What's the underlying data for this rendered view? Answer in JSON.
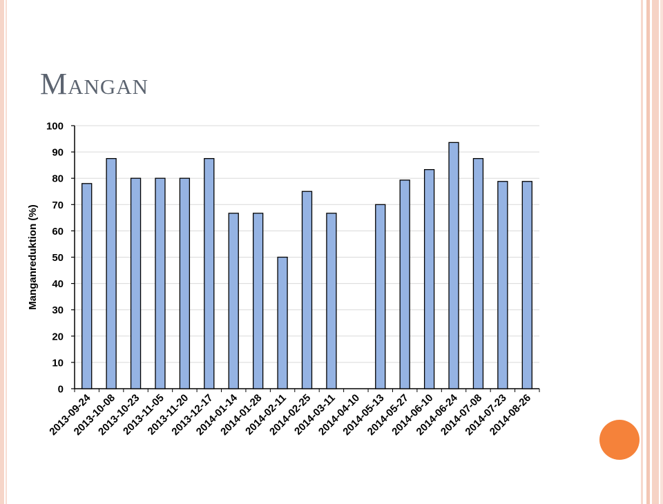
{
  "slide": {
    "title": "Mangan",
    "accent_color": "#f5823a",
    "border_color": "#f3c7b5"
  },
  "chart_data": {
    "type": "bar",
    "title": "",
    "xlabel": "",
    "ylabel": "Manganreduktion (%)",
    "ylim": [
      0,
      100
    ],
    "yticks": [
      0,
      10,
      20,
      30,
      40,
      50,
      60,
      70,
      80,
      90,
      100
    ],
    "grid": true,
    "bar_color": "#95b3e3",
    "categories": [
      "2013-09-24",
      "2013-10-08",
      "2013-10-23",
      "2013-11-05",
      "2013-11-20",
      "2013-12-17",
      "2014-01-14",
      "2014-01-28",
      "2014-02-11",
      "2014-02-25",
      "2014-03-11",
      "2014-04-10",
      "2014-05-13",
      "2014-05-27",
      "2014-06-10",
      "2014-06-24",
      "2014-07-08",
      "2014-07-23",
      "2014-08-26"
    ],
    "values": [
      78,
      87.5,
      80,
      80,
      80,
      87.5,
      66.7,
      66.7,
      50,
      75,
      66.7,
      null,
      70,
      79.3,
      83.3,
      93.6,
      87.5,
      78.8,
      78.8
    ]
  }
}
